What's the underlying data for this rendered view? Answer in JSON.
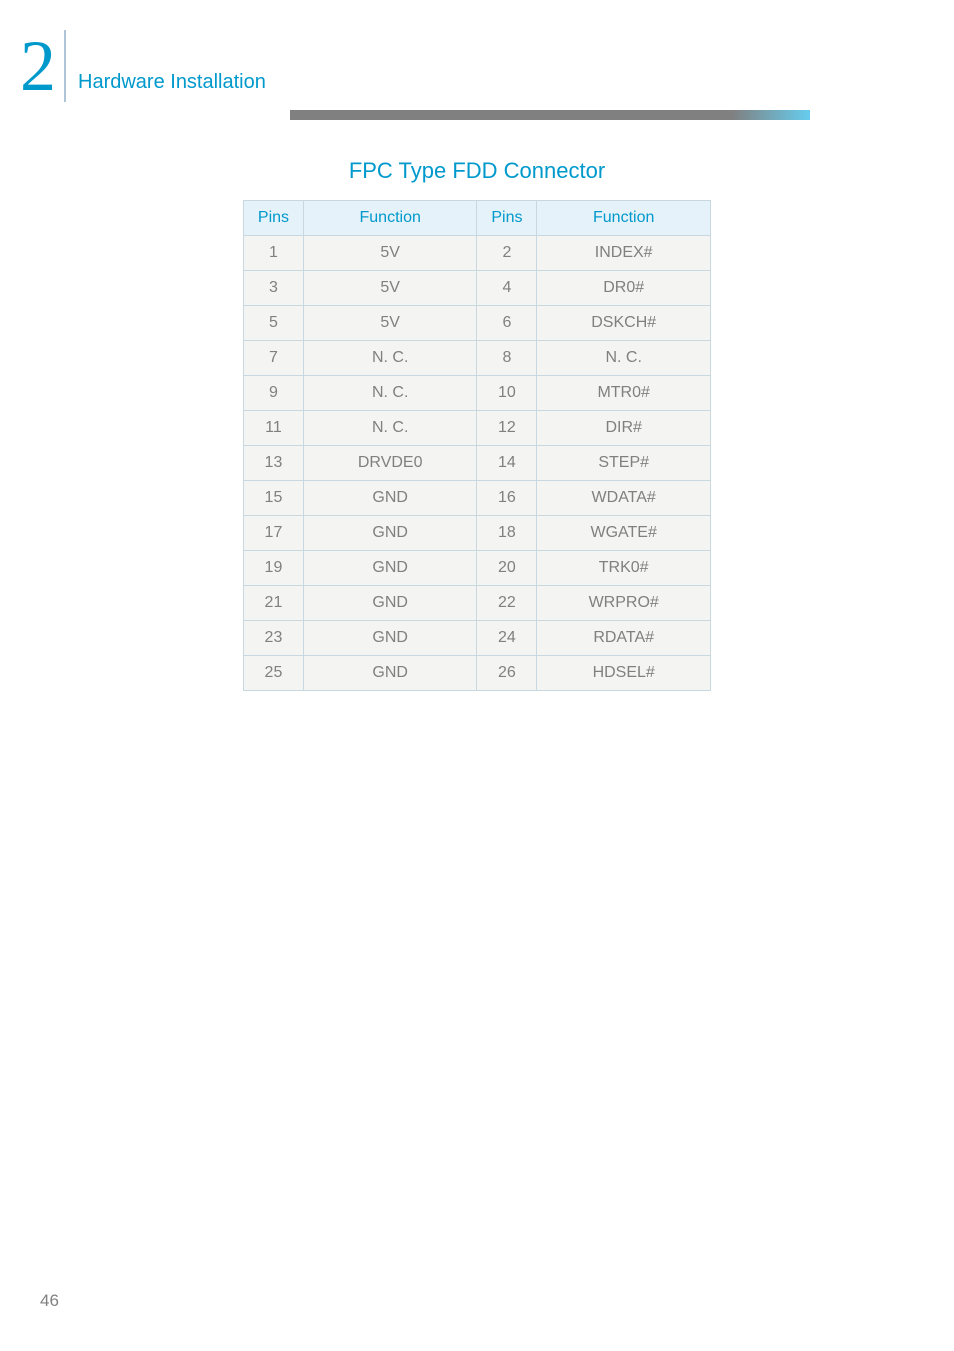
{
  "chapter": {
    "number": "2",
    "title": "Hardware Installation"
  },
  "section": {
    "title": "FPC Type FDD Connector"
  },
  "table": {
    "headers": [
      "Pins",
      "Function",
      "Pins",
      "Function"
    ],
    "rows": [
      [
        "1",
        "5V",
        "2",
        "INDEX#"
      ],
      [
        "3",
        "5V",
        "4",
        "DR0#"
      ],
      [
        "5",
        "5V",
        "6",
        "DSKCH#"
      ],
      [
        "7",
        "N. C.",
        "8",
        "N. C."
      ],
      [
        "9",
        "N. C.",
        "10",
        "MTR0#"
      ],
      [
        "11",
        "N. C.",
        "12",
        "DIR#"
      ],
      [
        "13",
        "DRVDE0",
        "14",
        "STEP#"
      ],
      [
        "15",
        "GND",
        "16",
        "WDATA#"
      ],
      [
        "17",
        "GND",
        "18",
        "WGATE#"
      ],
      [
        "19",
        "GND",
        "20",
        "TRK0#"
      ],
      [
        "21",
        "GND",
        "22",
        "WRPRO#"
      ],
      [
        "23",
        "GND",
        "24",
        "RDATA#"
      ],
      [
        "25",
        "GND",
        "26",
        "HDSEL#"
      ]
    ]
  },
  "pageNumber": "46",
  "colors": {
    "accent": "#0099cc",
    "text_muted": "#808080",
    "table_header_bg": "#e6f2f9",
    "table_cell_bg": "#f4f4f2",
    "table_border": "#c8d8e0"
  }
}
